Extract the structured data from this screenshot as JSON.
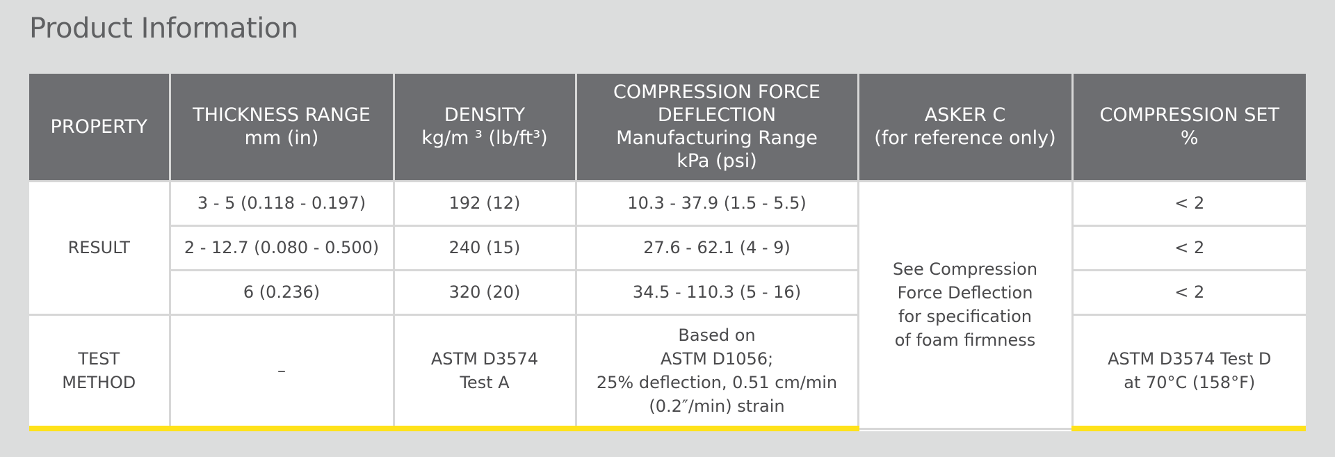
{
  "title": "Product Information",
  "table": {
    "headers": {
      "property": "PROPERTY",
      "thickness_line1": "THICKNESS RANGE",
      "thickness_line2": "mm (in)",
      "density_line1": "DENSITY",
      "density_line2": "kg/m ³  (lb/ft³)",
      "cfd_line1": "COMPRESSION FORCE",
      "cfd_line2": "DEFLECTION",
      "cfd_line3": "Manufacturing Range",
      "cfd_line4": "kPa (psi)",
      "asker_line1": "ASKER C",
      "asker_line2": "(for reference only)",
      "cset_line1": "COMPRESSION SET",
      "cset_line2": "%"
    },
    "result_label": "RESULT",
    "results": [
      {
        "thickness": "3 - 5 (0.118 - 0.197)",
        "density": "192 (12)",
        "cfd": "10.3 - 37.9 (1.5 - 5.5)",
        "compression_set": "< 2"
      },
      {
        "thickness": "2 - 12.7 (0.080 - 0.500)",
        "density": "240 (15)",
        "cfd": "27.6 - 62.1 (4 - 9)",
        "compression_set": "< 2"
      },
      {
        "thickness": "6 (0.236)",
        "density": "320 (20)",
        "cfd": "34.5 - 110.3 (5 - 16)",
        "compression_set": "< 2"
      }
    ],
    "asker_note": [
      "See Compression",
      "Force Deflection",
      "for specification",
      "of foam firmness"
    ],
    "test_method": {
      "label_line1": "TEST",
      "label_line2": "METHOD",
      "thickness": "–",
      "density_line1": "ASTM D3574",
      "density_line2": "Test A",
      "cfd_line1": "Based on",
      "cfd_line2": "ASTM D1056;",
      "cfd_line3": "25% deflection, 0.51 cm/min",
      "cfd_line4": "(0.2″/min) strain",
      "cset_line1": "ASTM D3574 Test D",
      "cset_line2": "at 70°C (158°F)"
    }
  },
  "colors": {
    "background": "#dcdddd",
    "header_bg": "#6d6e71",
    "accent_bar": "#ffe21a",
    "text": "#4a4a4c"
  }
}
